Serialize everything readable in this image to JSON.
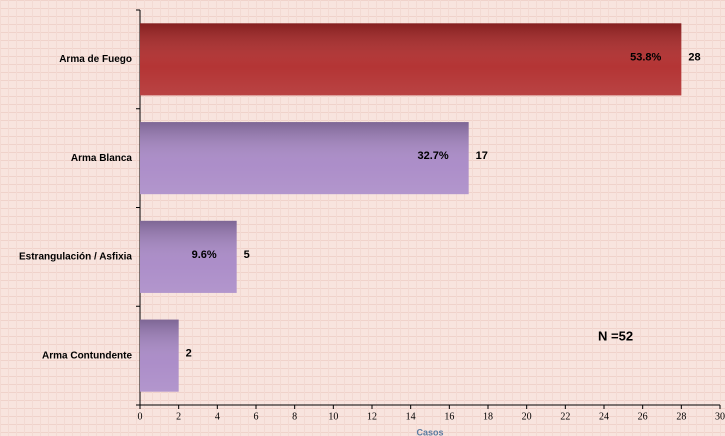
{
  "chart_data": {
    "type": "barh",
    "categories": [
      "Arma de Fuego",
      "Arma Blanca",
      "Estrangulación / Asfixia",
      "Arma Contundente"
    ],
    "values": [
      28,
      17,
      5,
      2
    ],
    "percent_labels": [
      "53.8%",
      "32.7%",
      "9.6%",
      null
    ],
    "colors": [
      "#b02a2a",
      "#a888c6",
      "#a888c6",
      "#a888c6"
    ],
    "xlim": [
      0,
      30
    ],
    "xticks": [
      0,
      2,
      4,
      6,
      8,
      10,
      12,
      14,
      16,
      18,
      20,
      22,
      24,
      26,
      28,
      30
    ],
    "xlabel": "Casos",
    "annotation": "N =52"
  }
}
